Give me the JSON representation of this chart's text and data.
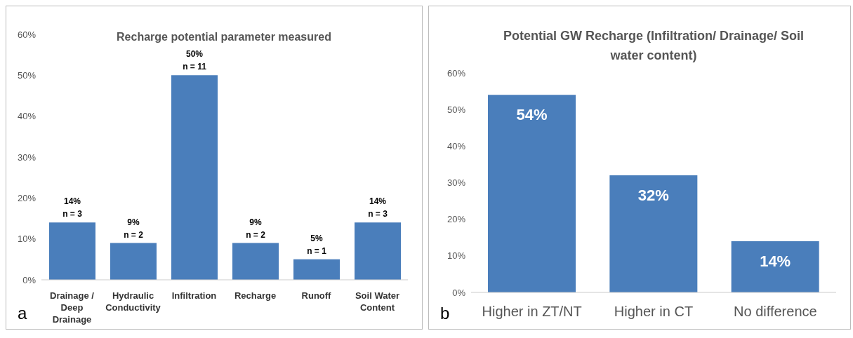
{
  "chart_data": [
    {
      "type": "bar",
      "title": "Recharge potential parameter measured",
      "categories": [
        "Drainage / Deep Drainage",
        "Hydraulic Conductivity",
        "Infiltration",
        "Recharge",
        "Runoff",
        "Soil Water Content"
      ],
      "values": [
        14,
        9,
        50,
        9,
        5,
        14
      ],
      "color": "#4a7ebb",
      "value_labels": [
        "14%\nn = 3",
        "9%\nn = 2",
        "50%\nn = 11",
        "9%\nn = 2",
        "5%\nn = 1",
        "14%\nn = 3"
      ],
      "ylim": [
        0,
        60
      ],
      "yticks": [
        {
          "value": 0,
          "label": "0%"
        },
        {
          "value": 10,
          "label": "10%"
        },
        {
          "value": 20,
          "label": "20%"
        },
        {
          "value": 30,
          "label": "30%"
        },
        {
          "value": 40,
          "label": "40%"
        },
        {
          "value": 50,
          "label": "50%"
        },
        {
          "value": 60,
          "label": "60%"
        }
      ],
      "grid": false,
      "annotations": [
        "a"
      ]
    },
    {
      "type": "bar",
      "title": "Potential GW Recharge (Infiltration/ Drainage/ Soil water content)",
      "categories": [
        "Higher in ZT/NT",
        "Higher in CT",
        "No difference"
      ],
      "values": [
        54,
        32,
        14
      ],
      "color": "#4a7ebb",
      "value_labels": [
        "54%",
        "32%",
        "14%"
      ],
      "ylim": [
        0,
        60
      ],
      "yticks": [
        {
          "value": 0,
          "label": "0%"
        },
        {
          "value": 10,
          "label": "10%"
        },
        {
          "value": 20,
          "label": "20%"
        },
        {
          "value": 30,
          "label": "30%"
        },
        {
          "value": 40,
          "label": "40%"
        },
        {
          "value": 50,
          "label": "50%"
        },
        {
          "value": 60,
          "label": "60%"
        }
      ],
      "grid": false,
      "annotations": [
        "b"
      ]
    }
  ]
}
